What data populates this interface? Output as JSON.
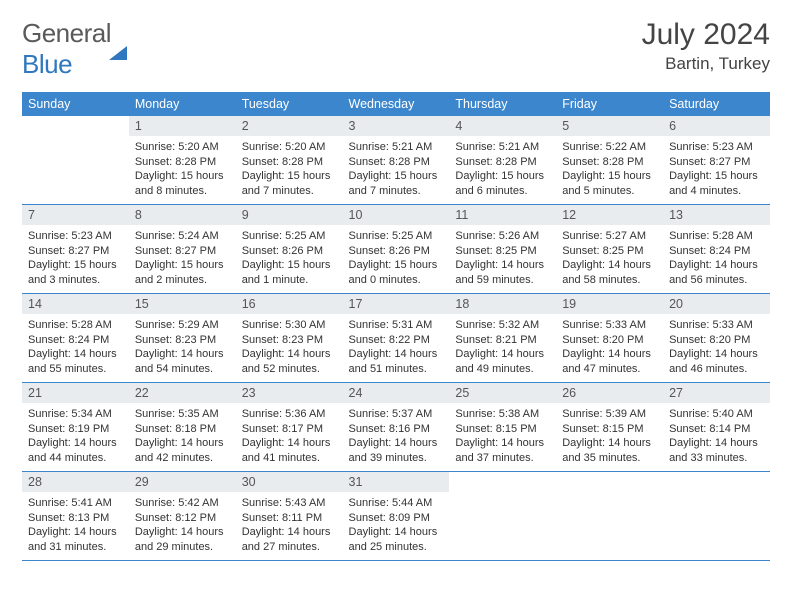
{
  "logo": {
    "word1": "General",
    "word2": "Blue"
  },
  "title": "July 2024",
  "location": "Bartin, Turkey",
  "colors": {
    "header_bg": "#3b86cc",
    "header_text": "#ffffff",
    "daynum_bg": "#e9ecef",
    "cell_border": "#3b86cc",
    "logo_gray": "#5a5a5a",
    "logo_blue": "#2f78bf",
    "body_text": "#333333",
    "background": "#ffffff"
  },
  "weekdays": [
    "Sunday",
    "Monday",
    "Tuesday",
    "Wednesday",
    "Thursday",
    "Friday",
    "Saturday"
  ],
  "weeks": [
    [
      null,
      {
        "n": "1",
        "sr": "5:20 AM",
        "ss": "8:28 PM",
        "d": "15 hours and 8 minutes."
      },
      {
        "n": "2",
        "sr": "5:20 AM",
        "ss": "8:28 PM",
        "d": "15 hours and 7 minutes."
      },
      {
        "n": "3",
        "sr": "5:21 AM",
        "ss": "8:28 PM",
        "d": "15 hours and 7 minutes."
      },
      {
        "n": "4",
        "sr": "5:21 AM",
        "ss": "8:28 PM",
        "d": "15 hours and 6 minutes."
      },
      {
        "n": "5",
        "sr": "5:22 AM",
        "ss": "8:28 PM",
        "d": "15 hours and 5 minutes."
      },
      {
        "n": "6",
        "sr": "5:23 AM",
        "ss": "8:27 PM",
        "d": "15 hours and 4 minutes."
      }
    ],
    [
      {
        "n": "7",
        "sr": "5:23 AM",
        "ss": "8:27 PM",
        "d": "15 hours and 3 minutes."
      },
      {
        "n": "8",
        "sr": "5:24 AM",
        "ss": "8:27 PM",
        "d": "15 hours and 2 minutes."
      },
      {
        "n": "9",
        "sr": "5:25 AM",
        "ss": "8:26 PM",
        "d": "15 hours and 1 minute."
      },
      {
        "n": "10",
        "sr": "5:25 AM",
        "ss": "8:26 PM",
        "d": "15 hours and 0 minutes."
      },
      {
        "n": "11",
        "sr": "5:26 AM",
        "ss": "8:25 PM",
        "d": "14 hours and 59 minutes."
      },
      {
        "n": "12",
        "sr": "5:27 AM",
        "ss": "8:25 PM",
        "d": "14 hours and 58 minutes."
      },
      {
        "n": "13",
        "sr": "5:28 AM",
        "ss": "8:24 PM",
        "d": "14 hours and 56 minutes."
      }
    ],
    [
      {
        "n": "14",
        "sr": "5:28 AM",
        "ss": "8:24 PM",
        "d": "14 hours and 55 minutes."
      },
      {
        "n": "15",
        "sr": "5:29 AM",
        "ss": "8:23 PM",
        "d": "14 hours and 54 minutes."
      },
      {
        "n": "16",
        "sr": "5:30 AM",
        "ss": "8:23 PM",
        "d": "14 hours and 52 minutes."
      },
      {
        "n": "17",
        "sr": "5:31 AM",
        "ss": "8:22 PM",
        "d": "14 hours and 51 minutes."
      },
      {
        "n": "18",
        "sr": "5:32 AM",
        "ss": "8:21 PM",
        "d": "14 hours and 49 minutes."
      },
      {
        "n": "19",
        "sr": "5:33 AM",
        "ss": "8:20 PM",
        "d": "14 hours and 47 minutes."
      },
      {
        "n": "20",
        "sr": "5:33 AM",
        "ss": "8:20 PM",
        "d": "14 hours and 46 minutes."
      }
    ],
    [
      {
        "n": "21",
        "sr": "5:34 AM",
        "ss": "8:19 PM",
        "d": "14 hours and 44 minutes."
      },
      {
        "n": "22",
        "sr": "5:35 AM",
        "ss": "8:18 PM",
        "d": "14 hours and 42 minutes."
      },
      {
        "n": "23",
        "sr": "5:36 AM",
        "ss": "8:17 PM",
        "d": "14 hours and 41 minutes."
      },
      {
        "n": "24",
        "sr": "5:37 AM",
        "ss": "8:16 PM",
        "d": "14 hours and 39 minutes."
      },
      {
        "n": "25",
        "sr": "5:38 AM",
        "ss": "8:15 PM",
        "d": "14 hours and 37 minutes."
      },
      {
        "n": "26",
        "sr": "5:39 AM",
        "ss": "8:15 PM",
        "d": "14 hours and 35 minutes."
      },
      {
        "n": "27",
        "sr": "5:40 AM",
        "ss": "8:14 PM",
        "d": "14 hours and 33 minutes."
      }
    ],
    [
      {
        "n": "28",
        "sr": "5:41 AM",
        "ss": "8:13 PM",
        "d": "14 hours and 31 minutes."
      },
      {
        "n": "29",
        "sr": "5:42 AM",
        "ss": "8:12 PM",
        "d": "14 hours and 29 minutes."
      },
      {
        "n": "30",
        "sr": "5:43 AM",
        "ss": "8:11 PM",
        "d": "14 hours and 27 minutes."
      },
      {
        "n": "31",
        "sr": "5:44 AM",
        "ss": "8:09 PM",
        "d": "14 hours and 25 minutes."
      },
      null,
      null,
      null
    ]
  ],
  "labels": {
    "sunrise": "Sunrise:",
    "sunset": "Sunset:",
    "daylight": "Daylight:"
  }
}
